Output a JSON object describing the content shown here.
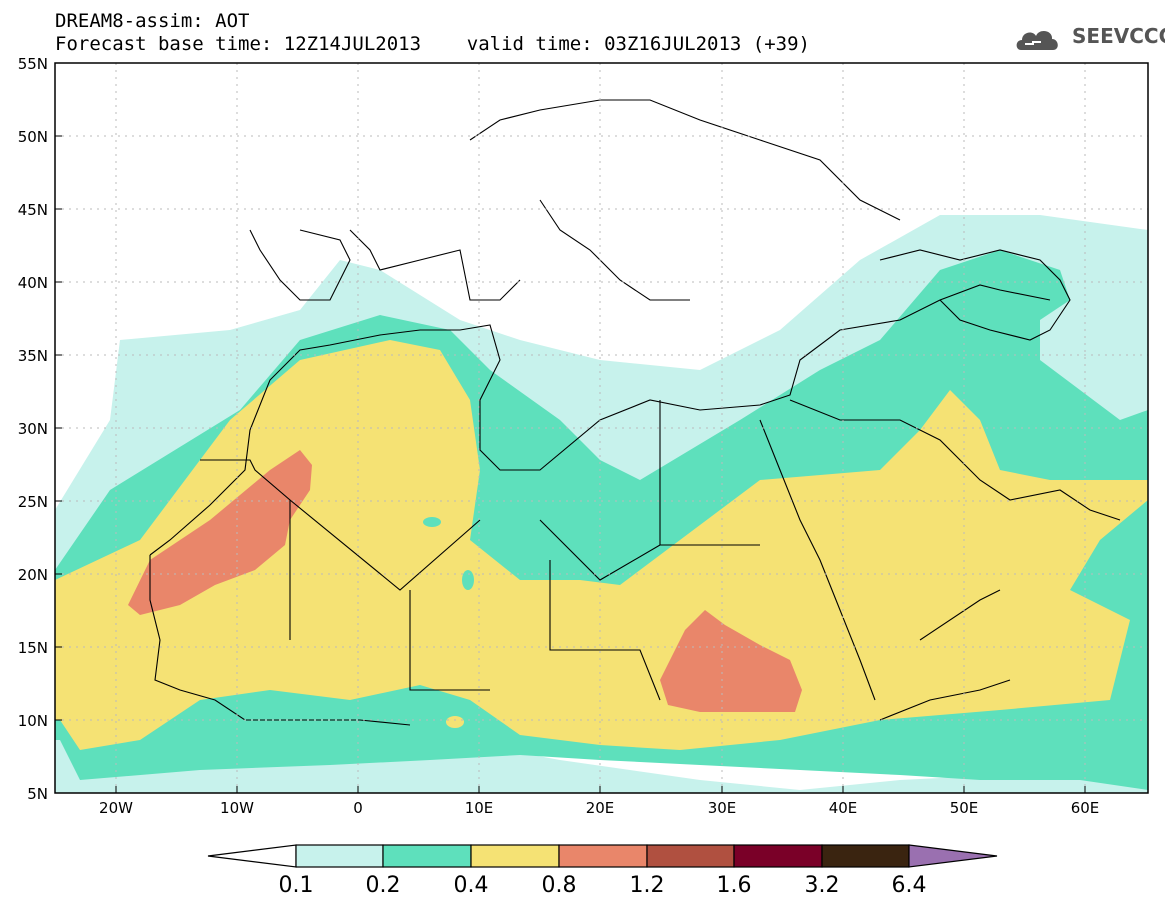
{
  "header": {
    "line1": "DREAM8-assim: AOT",
    "line2": "Forecast base time: 12Z14JUL2013    valid time: 03Z16JUL2013 (+39)",
    "logo_text": "SEEVCCC"
  },
  "axes": {
    "lat_labels": [
      "55N",
      "50N",
      "45N",
      "40N",
      "35N",
      "30N",
      "25N",
      "20N",
      "15N",
      "10N",
      "5N"
    ],
    "lon_labels": [
      "20W",
      "10W",
      "0",
      "10E",
      "20E",
      "30E",
      "40E",
      "50E",
      "60E"
    ]
  },
  "colorbar": {
    "labels": [
      "0.1",
      "0.2",
      "0.4",
      "0.8",
      "1.2",
      "1.6",
      "3.2",
      "6.4"
    ],
    "colors": [
      "#ffffff",
      "#c7f2ec",
      "#5ee0bc",
      "#f5e274",
      "#e9866a",
      "#b05040",
      "#7a0028",
      "#3a2410",
      "#9a70b0"
    ]
  },
  "map": {
    "extent": {
      "lon_min": -25,
      "lon_max": 65,
      "lat_min": 5,
      "lat_max": 55
    },
    "levels": {
      "c1": "#c7f2ec",
      "c2": "#5ee0bc",
      "c3": "#f5e274",
      "c4": "#e9866a"
    }
  }
}
